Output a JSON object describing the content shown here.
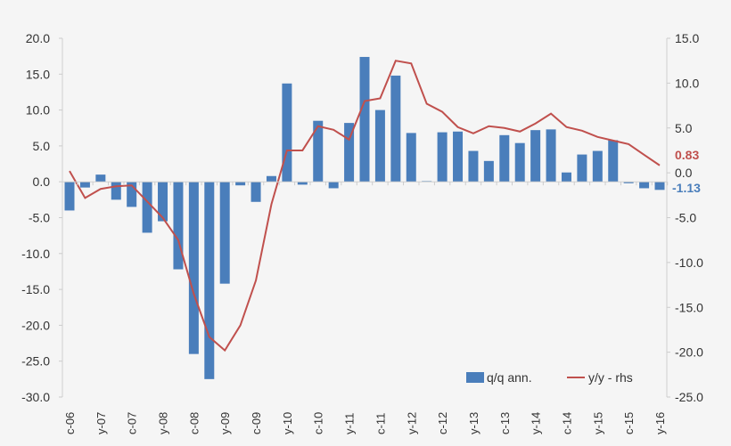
{
  "chart_data": {
    "type": "bar+line",
    "title": "",
    "categories": [
      "c-06",
      "",
      "y-07",
      "",
      "c-07",
      "",
      "y-08",
      "",
      "c-08",
      "",
      "y-09",
      "",
      "c-09",
      "",
      "y-10",
      "",
      "c-10",
      "",
      "y-11",
      "",
      "c-11",
      "",
      "y-12",
      "",
      "c-12",
      "",
      "y-13",
      "",
      "c-13",
      "",
      "y-14",
      "",
      "c-14",
      "",
      "y-15",
      "",
      "c-15",
      "",
      "y-16"
    ],
    "left_axis": {
      "ylim": [
        -30,
        20
      ],
      "ticks": [
        "20.0",
        "15.0",
        "10.0",
        "5.0",
        "0.0",
        "-5.0",
        "-10.0",
        "-15.0",
        "-20.0",
        "-25.0",
        "-30.0"
      ]
    },
    "right_axis": {
      "ylim": [
        -25,
        15
      ],
      "ticks": [
        "15.0",
        "10.0",
        "5.0",
        "0.0",
        "-5.0",
        "-10.0",
        "-15.0",
        "-20.0",
        "-25.0"
      ]
    },
    "series": [
      {
        "name": "q/q ann.",
        "type": "bar",
        "axis": "left",
        "color": "#4a7ebb",
        "values": [
          -4.0,
          -0.8,
          1.0,
          -2.5,
          -3.5,
          -7.1,
          -5.5,
          -12.2,
          -24.0,
          -27.5,
          -14.2,
          -0.5,
          -2.8,
          0.8,
          13.7,
          -0.4,
          8.5,
          -0.9,
          8.2,
          17.4,
          10.0,
          14.8,
          6.8,
          0.1,
          6.9,
          7.0,
          4.3,
          2.9,
          6.5,
          5.4,
          7.2,
          7.3,
          1.3,
          3.8,
          4.3,
          5.8,
          -0.2,
          -0.9,
          -1.13
        ]
      },
      {
        "name": "y/y - rhs",
        "type": "line",
        "axis": "right",
        "color": "#c0504d",
        "values": [
          0.2,
          -2.8,
          -1.8,
          -1.5,
          -1.4,
          -3.2,
          -5.0,
          -7.5,
          -13.5,
          -18.3,
          -19.8,
          -17.0,
          -12.0,
          -3.5,
          2.5,
          2.5,
          5.2,
          4.8,
          3.7,
          8.0,
          8.3,
          12.5,
          12.2,
          7.7,
          6.8,
          5.1,
          4.4,
          5.2,
          5.0,
          4.6,
          5.5,
          6.6,
          5.1,
          4.7,
          4.0,
          3.6,
          3.2,
          2.0,
          0.83
        ]
      }
    ],
    "annotations": [
      {
        "text": "0.83",
        "color": "#c0504d"
      },
      {
        "text": "-1.13",
        "color": "#4a7ebb"
      }
    ],
    "legend": "bottom-right"
  }
}
